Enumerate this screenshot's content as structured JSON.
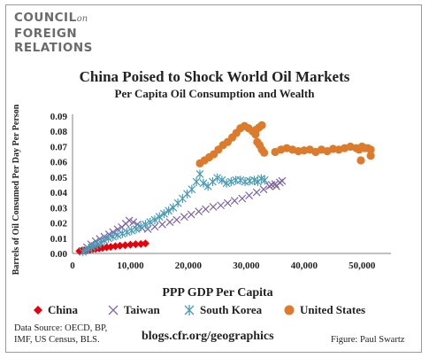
{
  "logo": {
    "line1": "COUNCIL",
    "line1_suffix": "on",
    "line2": "FOREIGN",
    "line3": "RELATIONS"
  },
  "footer": {
    "source_line1": "Data Source: OECD, BP,",
    "source_line2": "IMF, US Census, BLS.",
    "blog": "blogs.cfr.org/geographics",
    "credit": "Figure: Paul Swartz"
  },
  "colors": {
    "china": "#e8000b",
    "taiwan": "#7e63a8",
    "south_korea": "#4a9bb6",
    "united_states": "#dc7b2b"
  },
  "chart_data": {
    "type": "scatter",
    "title": "China Poised to Shock World Oil Markets",
    "subtitle": "Per Capita Oil Consumption and Wealth",
    "xlabel": "PPP GDP Per Capita",
    "ylabel": "Barrels of Oil Consumed Per Day Per Person",
    "xlim": [
      0,
      55000
    ],
    "ylim": [
      0,
      0.09
    ],
    "x_ticks": [
      "0",
      "10,000",
      "20,000",
      "30,000",
      "40,000",
      "50,000"
    ],
    "y_ticks": [
      "0.00",
      "0.01",
      "0.02",
      "0.03",
      "0.04",
      "0.05",
      "0.06",
      "0.07",
      "0.08",
      "0.09"
    ],
    "legend_position": "bottom",
    "grid": false,
    "series": [
      {
        "name": "China",
        "marker": "diamond",
        "points": [
          [
            1200,
            0.0015
          ],
          [
            1600,
            0.0018
          ],
          [
            2000,
            0.002
          ],
          [
            2500,
            0.0022
          ],
          [
            3000,
            0.0025
          ],
          [
            3500,
            0.0028
          ],
          [
            4000,
            0.003
          ],
          [
            4600,
            0.0033
          ],
          [
            5200,
            0.0036
          ],
          [
            5900,
            0.004
          ],
          [
            6600,
            0.0043
          ],
          [
            7400,
            0.0047
          ],
          [
            8200,
            0.0051
          ],
          [
            9100,
            0.0054
          ],
          [
            10000,
            0.0057
          ],
          [
            10900,
            0.006
          ],
          [
            11800,
            0.0062
          ],
          [
            12600,
            0.0065
          ]
        ]
      },
      {
        "name": "Taiwan",
        "marker": "x",
        "points": [
          [
            2500,
            0.004
          ],
          [
            3200,
            0.006
          ],
          [
            4000,
            0.008
          ],
          [
            4700,
            0.0095
          ],
          [
            5500,
            0.011
          ],
          [
            6300,
            0.0125
          ],
          [
            7000,
            0.014
          ],
          [
            7800,
            0.0158
          ],
          [
            8500,
            0.0172
          ],
          [
            9200,
            0.0195
          ],
          [
            9800,
            0.0215
          ],
          [
            10500,
            0.0205
          ],
          [
            11200,
            0.019
          ],
          [
            12000,
            0.0165
          ],
          [
            13000,
            0.016
          ],
          [
            14200,
            0.0175
          ],
          [
            15500,
            0.019
          ],
          [
            16800,
            0.0205
          ],
          [
            18000,
            0.022
          ],
          [
            19300,
            0.024
          ],
          [
            20500,
            0.0255
          ],
          [
            21800,
            0.0275
          ],
          [
            23000,
            0.029
          ],
          [
            24300,
            0.0305
          ],
          [
            25600,
            0.0315
          ],
          [
            26800,
            0.033
          ],
          [
            28000,
            0.0345
          ],
          [
            29300,
            0.036
          ],
          [
            30500,
            0.038
          ],
          [
            31800,
            0.04
          ],
          [
            33000,
            0.042
          ],
          [
            34000,
            0.044
          ],
          [
            35000,
            0.0455
          ],
          [
            35800,
            0.0465
          ],
          [
            36200,
            0.0475
          ],
          [
            35200,
            0.044
          ],
          [
            34400,
            0.045
          ]
        ]
      },
      {
        "name": "South Korea",
        "marker": "asterisk",
        "points": [
          [
            1800,
            0.001
          ],
          [
            2300,
            0.002
          ],
          [
            2800,
            0.003
          ],
          [
            3300,
            0.004
          ],
          [
            3800,
            0.005
          ],
          [
            4300,
            0.006
          ],
          [
            4900,
            0.007
          ],
          [
            5500,
            0.0085
          ],
          [
            6200,
            0.01
          ],
          [
            7000,
            0.011
          ],
          [
            7800,
            0.012
          ],
          [
            8600,
            0.013
          ],
          [
            9400,
            0.014
          ],
          [
            10200,
            0.015
          ],
          [
            11000,
            0.016
          ],
          [
            11800,
            0.0175
          ],
          [
            12600,
            0.019
          ],
          [
            13400,
            0.0205
          ],
          [
            14200,
            0.022
          ],
          [
            15000,
            0.024
          ],
          [
            15800,
            0.026
          ],
          [
            16600,
            0.028
          ],
          [
            17400,
            0.03
          ],
          [
            18200,
            0.033
          ],
          [
            19000,
            0.036
          ],
          [
            19800,
            0.039
          ],
          [
            20600,
            0.042
          ],
          [
            21400,
            0.047
          ],
          [
            22000,
            0.052
          ],
          [
            22600,
            0.046
          ],
          [
            23400,
            0.044
          ],
          [
            24200,
            0.047
          ],
          [
            25000,
            0.0495
          ],
          [
            25800,
            0.048
          ],
          [
            26600,
            0.046
          ],
          [
            27400,
            0.047
          ],
          [
            28200,
            0.048
          ],
          [
            29000,
            0.048
          ],
          [
            29800,
            0.047
          ],
          [
            30600,
            0.0475
          ],
          [
            31400,
            0.048
          ],
          [
            32000,
            0.047
          ],
          [
            32600,
            0.049
          ],
          [
            33200,
            0.048
          ]
        ]
      },
      {
        "name": "United States",
        "marker": "circle",
        "points": [
          [
            22000,
            0.059
          ],
          [
            22800,
            0.061
          ],
          [
            23600,
            0.063
          ],
          [
            24400,
            0.065
          ],
          [
            25200,
            0.068
          ],
          [
            26000,
            0.071
          ],
          [
            26800,
            0.073
          ],
          [
            27600,
            0.076
          ],
          [
            28300,
            0.079
          ],
          [
            29000,
            0.082
          ],
          [
            29700,
            0.0835
          ],
          [
            30400,
            0.082
          ],
          [
            31100,
            0.08
          ],
          [
            31700,
            0.081
          ],
          [
            32200,
            0.0825
          ],
          [
            32700,
            0.084
          ],
          [
            31600,
            0.078
          ],
          [
            31900,
            0.073
          ],
          [
            32300,
            0.071
          ],
          [
            32700,
            0.068
          ],
          [
            33100,
            0.066
          ],
          [
            35000,
            0.0665
          ],
          [
            36000,
            0.068
          ],
          [
            37000,
            0.069
          ],
          [
            38000,
            0.068
          ],
          [
            39000,
            0.067
          ],
          [
            40000,
            0.0675
          ],
          [
            41000,
            0.068
          ],
          [
            42000,
            0.0665
          ],
          [
            43000,
            0.068
          ],
          [
            44000,
            0.067
          ],
          [
            45000,
            0.0685
          ],
          [
            46000,
            0.068
          ],
          [
            47000,
            0.069
          ],
          [
            48000,
            0.07
          ],
          [
            49000,
            0.069
          ],
          [
            49500,
            0.068
          ],
          [
            50000,
            0.07
          ],
          [
            50500,
            0.069
          ],
          [
            51000,
            0.069
          ],
          [
            51500,
            0.068
          ],
          [
            49800,
            0.061
          ],
          [
            51500,
            0.064
          ]
        ]
      }
    ]
  }
}
